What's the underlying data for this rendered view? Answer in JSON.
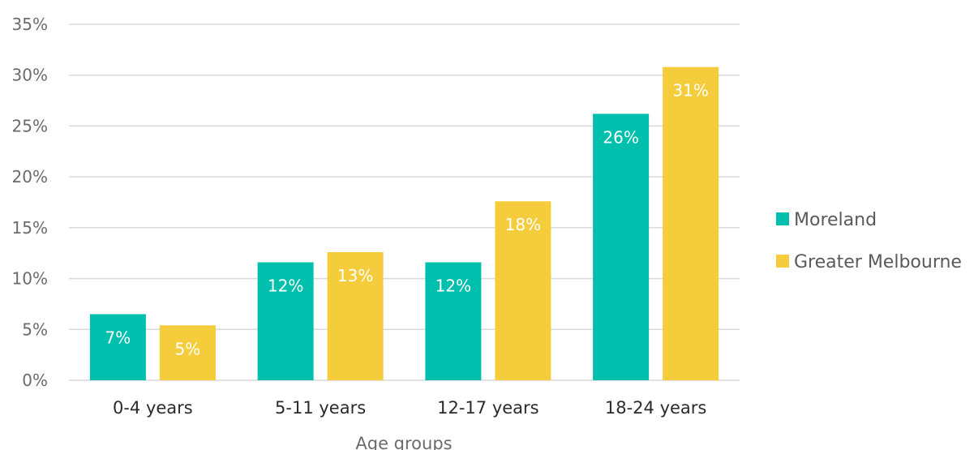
{
  "chart_data": {
    "type": "bar",
    "categories": [
      "0-4 years",
      "5-11 years",
      "12-17 years",
      "18-24 years"
    ],
    "series": [
      {
        "name": "Moreland",
        "values": [
          6.5,
          11.6,
          11.6,
          26.2
        ],
        "labels": [
          "7%",
          "12%",
          "12%",
          "26%"
        ],
        "color": "#00bfad"
      },
      {
        "name": "Greater Melbourne",
        "values": [
          5.4,
          12.6,
          17.6,
          30.8
        ],
        "labels": [
          "5%",
          "13%",
          "18%",
          "31%"
        ],
        "color": "#f5cd3c"
      }
    ],
    "xlabel": "Age groups",
    "ylabel": "",
    "ylim": [
      0,
      35
    ],
    "yticks": [
      0,
      5,
      10,
      15,
      20,
      25,
      30,
      35
    ],
    "ytick_labels": [
      "0%",
      "5%",
      "10%",
      "15%",
      "20%",
      "25%",
      "30%",
      "35%"
    ],
    "grid": true,
    "legend": "right"
  }
}
